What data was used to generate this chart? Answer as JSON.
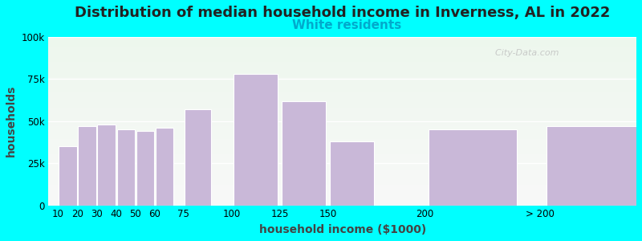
{
  "title": "Distribution of median household income in Inverness, AL in 2022",
  "subtitle": "White residents",
  "xlabel": "household income ($1000)",
  "ylabel": "households",
  "background_color": "#00FFFF",
  "bar_color": "#c9b8d8",
  "bar_edge_color": "#ffffff",
  "bar_linewidth": 0.8,
  "categories_x": [
    10,
    20,
    30,
    40,
    50,
    60,
    75,
    100,
    125,
    150,
    200,
    260
  ],
  "bar_widths": [
    10,
    10,
    10,
    10,
    10,
    10,
    15,
    25,
    25,
    25,
    50,
    80
  ],
  "values": [
    35000,
    47000,
    48000,
    45000,
    44000,
    46000,
    57000,
    78000,
    62000,
    38000,
    45000,
    47000
  ],
  "xlim": [
    5,
    310
  ],
  "ylim": [
    0,
    100000
  ],
  "yticks": [
    0,
    25000,
    50000,
    75000,
    100000
  ],
  "xtick_positions": [
    10,
    20,
    30,
    40,
    50,
    60,
    75,
    100,
    125,
    150,
    200,
    260
  ],
  "xtick_labels": [
    "10",
    "20",
    "30",
    "40",
    "50",
    "60",
    "75",
    "100",
    "125",
    "150",
    "200",
    "> 200"
  ],
  "title_fontsize": 13,
  "subtitle_fontsize": 11,
  "subtitle_color": "#00AACC",
  "axis_label_fontsize": 10,
  "tick_fontsize": 8.5,
  "watermark": "  City-Data.com"
}
